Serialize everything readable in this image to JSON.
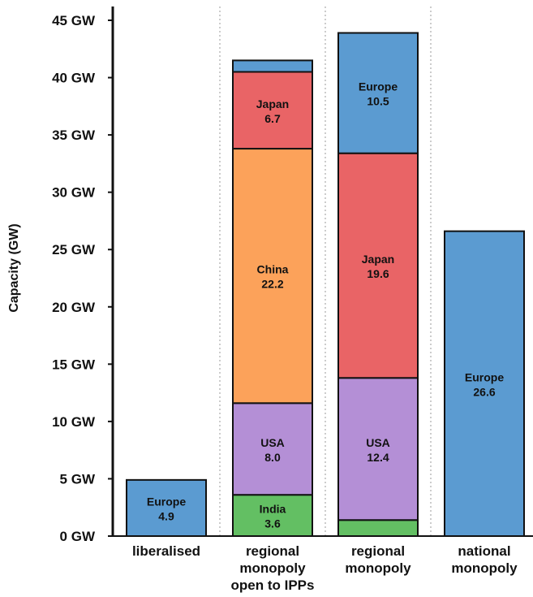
{
  "chart_data": {
    "type": "bar",
    "stacked": true,
    "ylabel": "Capacity (GW)",
    "ylim": [
      0,
      45
    ],
    "yticks": [
      "0 GW",
      "5 GW",
      "10 GW",
      "15 GW",
      "20 GW",
      "25 GW",
      "30 GW",
      "35 GW",
      "40 GW",
      "45 GW"
    ],
    "categories": [
      [
        "liberalised"
      ],
      [
        "regional",
        "monopoly",
        "open to IPPs"
      ],
      [
        "regional",
        "monopoly"
      ],
      [
        "national",
        "monopoly"
      ]
    ],
    "bars": [
      {
        "segments": [
          {
            "region": "Europe",
            "value": 4.9,
            "label": "Europe",
            "value_label": "4.9"
          }
        ]
      },
      {
        "segments": [
          {
            "region": "India",
            "value": 3.6,
            "label": "India",
            "value_label": "3.6"
          },
          {
            "region": "USA",
            "value": 8.0,
            "label": "USA",
            "value_label": "8.0"
          },
          {
            "region": "China",
            "value": 22.2,
            "label": "China",
            "value_label": "22.2"
          },
          {
            "region": "Japan",
            "value": 6.7,
            "label": "Japan",
            "value_label": "6.7"
          },
          {
            "region": "Europe",
            "value": 1.0,
            "label": "",
            "value_label": ""
          }
        ]
      },
      {
        "segments": [
          {
            "region": "India",
            "value": 1.4,
            "label": "",
            "value_label": ""
          },
          {
            "region": "USA",
            "value": 12.4,
            "label": "USA",
            "value_label": "12.4"
          },
          {
            "region": "Japan",
            "value": 19.6,
            "label": "Japan",
            "value_label": "19.6"
          },
          {
            "region": "Europe",
            "value": 10.5,
            "label": "Europe",
            "value_label": "10.5"
          }
        ]
      },
      {
        "segments": [
          {
            "region": "Europe",
            "value": 26.6,
            "label": "Europe",
            "value_label": "26.6"
          }
        ]
      }
    ],
    "colors": {
      "Europe": "#5b9bd1",
      "Japan": "#e96466",
      "China": "#fca25a",
      "USA": "#b48fd6",
      "India": "#63bf63"
    },
    "grid": false,
    "category_separators": "dotted"
  }
}
